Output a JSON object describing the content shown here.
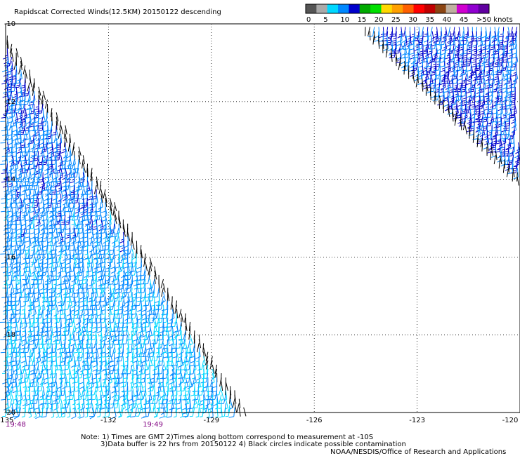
{
  "chart_data": {
    "type": "wind-barb-map",
    "title": "Rapidscat Corrected Winds(12.5KM) 20150122 descending",
    "x_ticks": [
      "-135",
      "-132",
      "-129",
      "-126",
      "-123",
      "-120"
    ],
    "y_ticks": [
      "-10",
      "-12",
      "-14",
      "-16",
      "-18",
      "-20"
    ],
    "xlim": [
      -135,
      -120
    ],
    "ylim": [
      -20,
      -10
    ],
    "grid": true,
    "legend": {
      "labels": [
        "0",
        "5",
        "10",
        "15",
        "20",
        "25",
        "30",
        "35",
        "40",
        "45",
        ">50 knots"
      ],
      "colors": [
        "#555555",
        "#aaaaaa",
        "#00d8ff",
        "#0088ff",
        "#0000cc",
        "#00aa00",
        "#00e000",
        "#ffd800",
        "#ffa000",
        "#ff6000",
        "#ff0000",
        "#c00000",
        "#8b4513",
        "#c0b0a0",
        "#d000d0",
        "#9000d0",
        "#6000a0"
      ]
    },
    "swath_times": [
      {
        "lon": -135,
        "label": "19:48"
      },
      {
        "lon": -131,
        "label": "19:49"
      }
    ],
    "speed_bins_knots": [
      0,
      5,
      10,
      15,
      20,
      25
    ],
    "speed_colors": [
      "#000000",
      "#00d8ff",
      "#0088ff",
      "#0000cc",
      "#00cc00",
      "#00e000"
    ],
    "swath_main": {
      "apex": {
        "lon": -135,
        "lat": -10.2
      },
      "edge_end": {
        "lon": -127.9,
        "lat": -20
      },
      "dominant_direction_deg_from": 180,
      "speeds_north_knots": 16,
      "speeds_south_knots": 9
    },
    "swath_northeast": {
      "edge_start": {
        "lon": -124.6,
        "lat": -10
      },
      "edge_end": {
        "lon": -120,
        "lat": -14.0
      },
      "speed_knots": 15
    }
  },
  "notes": {
    "line1": "Note: 1) Times are GMT 2)Times along bottom correspond to measurement at -10S",
    "line2": "3)Data buffer is 22 hrs from 20150122 4) Black circles indicate possible contamination",
    "line3": "NOAA/NESDIS/Office of Research and Applications"
  }
}
